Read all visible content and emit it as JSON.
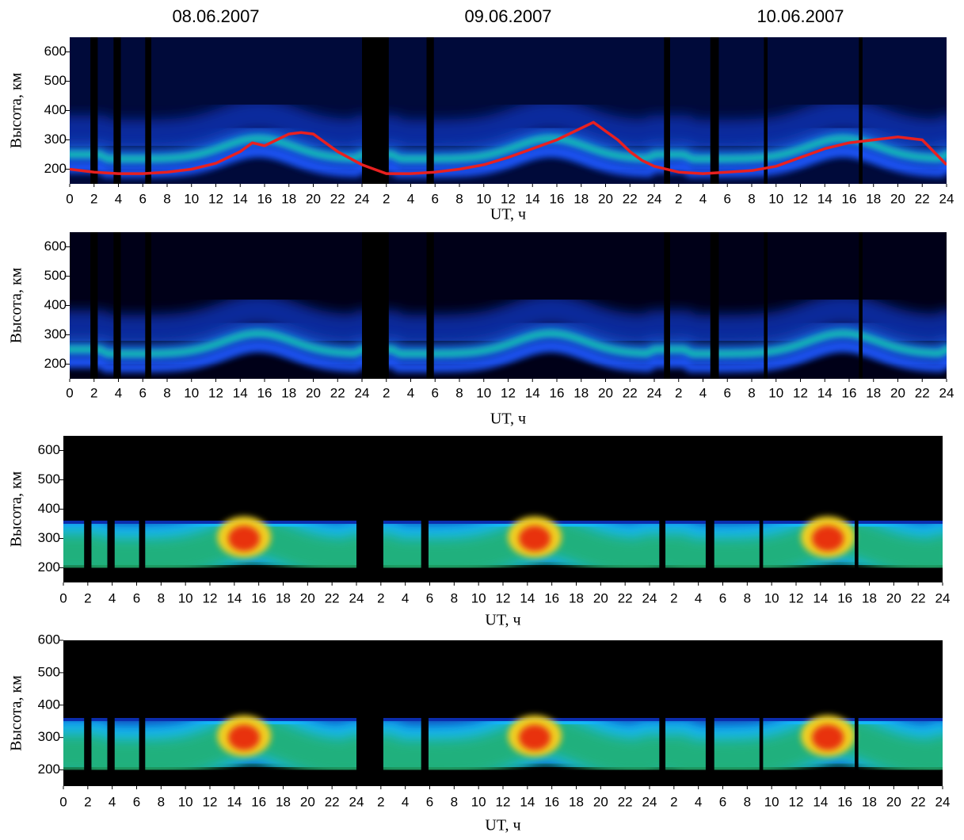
{
  "chart_data": [
    {
      "type": "heatmap",
      "day_titles": [
        "08.06.2007",
        "09.06.2007",
        "10.06.2007"
      ],
      "ylabel": "Высота, км",
      "xlabel": "UT, ч",
      "xlim": [
        0,
        72
      ],
      "ylim": [
        150,
        650
      ],
      "yticks": [
        200,
        300,
        400,
        500,
        600
      ],
      "xticks": [
        0,
        2,
        4,
        6,
        8,
        10,
        12,
        14,
        16,
        18,
        20,
        22,
        24,
        {
          "value": 26,
          "label": "2"
        },
        {
          "value": 28,
          "label": "4"
        },
        {
          "value": 30,
          "label": "6"
        },
        {
          "value": 32,
          "label": "8"
        },
        {
          "value": 34,
          "label": "10"
        },
        {
          "value": 36,
          "label": "12"
        },
        {
          "value": 38,
          "label": "14"
        },
        {
          "value": 40,
          "label": "16"
        },
        {
          "value": 42,
          "label": "18"
        },
        {
          "value": 44,
          "label": "20"
        },
        {
          "value": 46,
          "label": "22"
        },
        {
          "value": 48,
          "label": "24"
        },
        {
          "value": 50,
          "label": "2"
        },
        {
          "value": 52,
          "label": "4"
        },
        {
          "value": 54,
          "label": "6"
        },
        {
          "value": 56,
          "label": "8"
        },
        {
          "value": 58,
          "label": "10"
        },
        {
          "value": 60,
          "label": "12"
        },
        {
          "value": 62,
          "label": "14"
        },
        {
          "value": 64,
          "label": "16"
        },
        {
          "value": 66,
          "label": "18"
        },
        {
          "value": 68,
          "label": "20"
        },
        {
          "value": 70,
          "label": "22"
        },
        {
          "value": 72,
          "label": "24"
        }
      ],
      "series": [
        {
          "color": "#e82020",
          "x": [
            0,
            2,
            4,
            6,
            8,
            10,
            12,
            14,
            15,
            16,
            17,
            18,
            19,
            20,
            21,
            22,
            24,
            26,
            28,
            30,
            32,
            34,
            36,
            38,
            40,
            42,
            43,
            44,
            45,
            46,
            47,
            48,
            50,
            52,
            54,
            56,
            58,
            60,
            62,
            64,
            66,
            68,
            70,
            72
          ],
          "values": [
            200,
            190,
            185,
            185,
            190,
            200,
            220,
            260,
            290,
            280,
            300,
            320,
            325,
            320,
            290,
            260,
            215,
            185,
            185,
            190,
            200,
            215,
            240,
            270,
            300,
            340,
            360,
            330,
            300,
            260,
            230,
            210,
            190,
            185,
            190,
            195,
            210,
            240,
            270,
            290,
            300,
            310,
            300,
            215
          ]
        }
      ]
    },
    {
      "type": "heatmap",
      "ylabel": "Высота, км",
      "xlabel": "UT, ч",
      "xlim": [
        0,
        72
      ],
      "ylim": [
        150,
        650
      ],
      "yticks": [
        200,
        300,
        400,
        500,
        600
      ],
      "xticks": [
        0,
        2,
        4,
        6,
        8,
        10,
        12,
        14,
        16,
        18,
        20,
        22,
        24,
        {
          "value": 26,
          "label": "2"
        },
        {
          "value": 28,
          "label": "4"
        },
        {
          "value": 30,
          "label": "6"
        },
        {
          "value": 32,
          "label": "8"
        },
        {
          "value": 34,
          "label": "10"
        },
        {
          "value": 36,
          "label": "12"
        },
        {
          "value": 38,
          "label": "14"
        },
        {
          "value": 40,
          "label": "16"
        },
        {
          "value": 42,
          "label": "18"
        },
        {
          "value": 44,
          "label": "20"
        },
        {
          "value": 46,
          "label": "22"
        },
        {
          "value": 48,
          "label": "24"
        },
        {
          "value": 50,
          "label": "2"
        },
        {
          "value": 52,
          "label": "4"
        },
        {
          "value": 54,
          "label": "6"
        },
        {
          "value": 56,
          "label": "8"
        },
        {
          "value": 58,
          "label": "10"
        },
        {
          "value": 60,
          "label": "12"
        },
        {
          "value": 62,
          "label": "14"
        },
        {
          "value": 64,
          "label": "16"
        },
        {
          "value": 66,
          "label": "18"
        },
        {
          "value": 68,
          "label": "20"
        },
        {
          "value": 70,
          "label": "22"
        },
        {
          "value": 72,
          "label": "24"
        }
      ]
    },
    {
      "type": "heatmap",
      "ylabel": "Высота, км",
      "xlabel": "UT, ч",
      "xlim": [
        0,
        72
      ],
      "ylim": [
        150,
        650
      ],
      "yticks": [
        200,
        300,
        400,
        500,
        600
      ],
      "xticks": [
        0,
        2,
        4,
        6,
        8,
        10,
        12,
        14,
        16,
        18,
        20,
        22,
        24,
        {
          "value": 26,
          "label": "2"
        },
        {
          "value": 28,
          "label": "4"
        },
        {
          "value": 30,
          "label": "6"
        },
        {
          "value": 32,
          "label": "8"
        },
        {
          "value": 34,
          "label": "10"
        },
        {
          "value": 36,
          "label": "12"
        },
        {
          "value": 38,
          "label": "14"
        },
        {
          "value": 40,
          "label": "16"
        },
        {
          "value": 42,
          "label": "18"
        },
        {
          "value": 44,
          "label": "20"
        },
        {
          "value": 46,
          "label": "22"
        },
        {
          "value": 48,
          "label": "24"
        },
        {
          "value": 50,
          "label": "2"
        },
        {
          "value": 52,
          "label": "4"
        },
        {
          "value": 54,
          "label": "6"
        },
        {
          "value": 56,
          "label": "8"
        },
        {
          "value": 58,
          "label": "10"
        },
        {
          "value": 60,
          "label": "12"
        },
        {
          "value": 62,
          "label": "14"
        },
        {
          "value": 64,
          "label": "16"
        },
        {
          "value": 66,
          "label": "18"
        },
        {
          "value": 68,
          "label": "20"
        },
        {
          "value": 70,
          "label": "22"
        },
        {
          "value": 72,
          "label": "24"
        }
      ]
    },
    {
      "type": "heatmap",
      "ylabel": "Высота, км",
      "xlabel": "UT, ч",
      "xlim": [
        0,
        72
      ],
      "ylim": [
        150,
        600
      ],
      "yticks": [
        200,
        300,
        400,
        500,
        600
      ],
      "xticks": [
        0,
        2,
        4,
        6,
        8,
        10,
        12,
        14,
        16,
        18,
        20,
        22,
        24,
        {
          "value": 26,
          "label": "2"
        },
        {
          "value": 28,
          "label": "4"
        },
        {
          "value": 30,
          "label": "6"
        },
        {
          "value": 32,
          "label": "8"
        },
        {
          "value": 34,
          "label": "10"
        },
        {
          "value": 36,
          "label": "12"
        },
        {
          "value": 38,
          "label": "14"
        },
        {
          "value": 40,
          "label": "16"
        },
        {
          "value": 42,
          "label": "18"
        },
        {
          "value": 44,
          "label": "20"
        },
        {
          "value": 46,
          "label": "22"
        },
        {
          "value": 48,
          "label": "24"
        },
        {
          "value": 50,
          "label": "2"
        },
        {
          "value": 52,
          "label": "4"
        },
        {
          "value": 54,
          "label": "6"
        },
        {
          "value": 56,
          "label": "8"
        },
        {
          "value": 58,
          "label": "10"
        },
        {
          "value": 60,
          "label": "12"
        },
        {
          "value": 62,
          "label": "14"
        },
        {
          "value": 64,
          "label": "16"
        },
        {
          "value": 66,
          "label": "18"
        },
        {
          "value": 68,
          "label": "20"
        },
        {
          "value": 70,
          "label": "22"
        },
        {
          "value": 72,
          "label": "24"
        }
      ]
    }
  ]
}
